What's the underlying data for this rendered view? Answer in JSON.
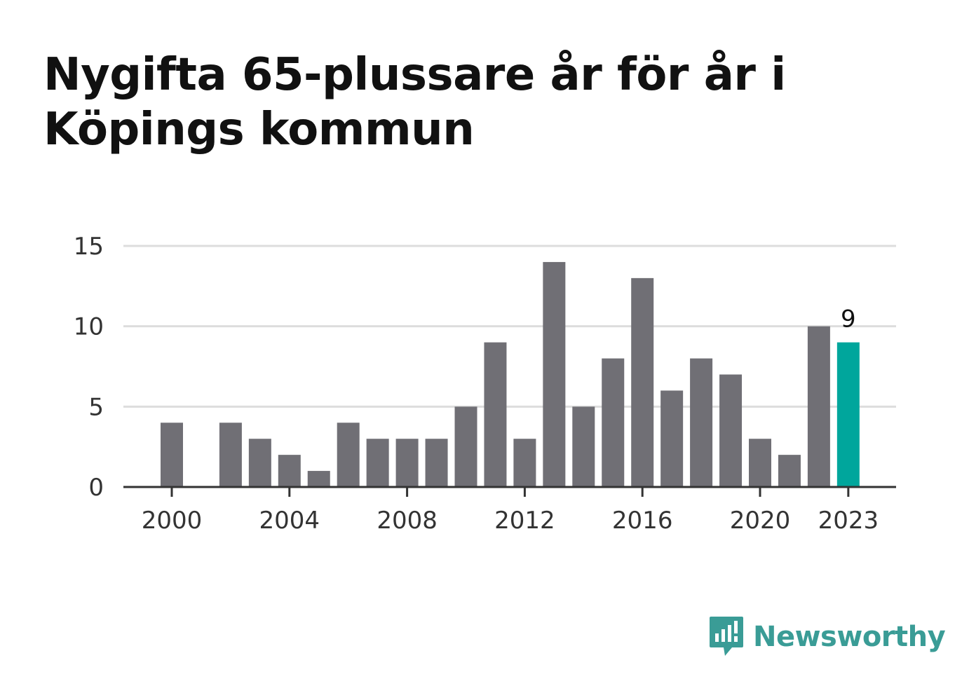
{
  "header": {
    "title": "Nygifta 65-plussare år för år i Köpings kommun"
  },
  "chart_data": {
    "type": "bar",
    "title": "Nygifta 65-plussare år för år i Köpings kommun",
    "xlabel": "",
    "ylabel": "",
    "categories": [
      2000,
      2001,
      2002,
      2003,
      2004,
      2005,
      2006,
      2007,
      2008,
      2009,
      2010,
      2011,
      2012,
      2013,
      2014,
      2015,
      2016,
      2017,
      2018,
      2019,
      2020,
      2021,
      2022,
      2023
    ],
    "values": [
      4,
      0,
      4,
      3,
      2,
      1,
      4,
      3,
      3,
      3,
      5,
      9,
      3,
      14,
      5,
      8,
      13,
      6,
      8,
      7,
      3,
      2,
      10,
      9
    ],
    "x_tick_labels": [
      "2000",
      "2004",
      "2008",
      "2012",
      "2016",
      "2020",
      "2023"
    ],
    "y_ticks": [
      "0",
      "5",
      "10",
      "15"
    ],
    "ylim": [
      0,
      15
    ],
    "grid": "horizontal",
    "highlight": {
      "category": 2023,
      "label": "9"
    },
    "colors": {
      "bar": "#706f75",
      "highlight": "#00a69c",
      "grid": "#dddddd",
      "axis": "#333333"
    }
  },
  "brand": {
    "name": "Newsworthy",
    "icon": "newsworthy-logo-icon",
    "color": "#3a9c96"
  }
}
